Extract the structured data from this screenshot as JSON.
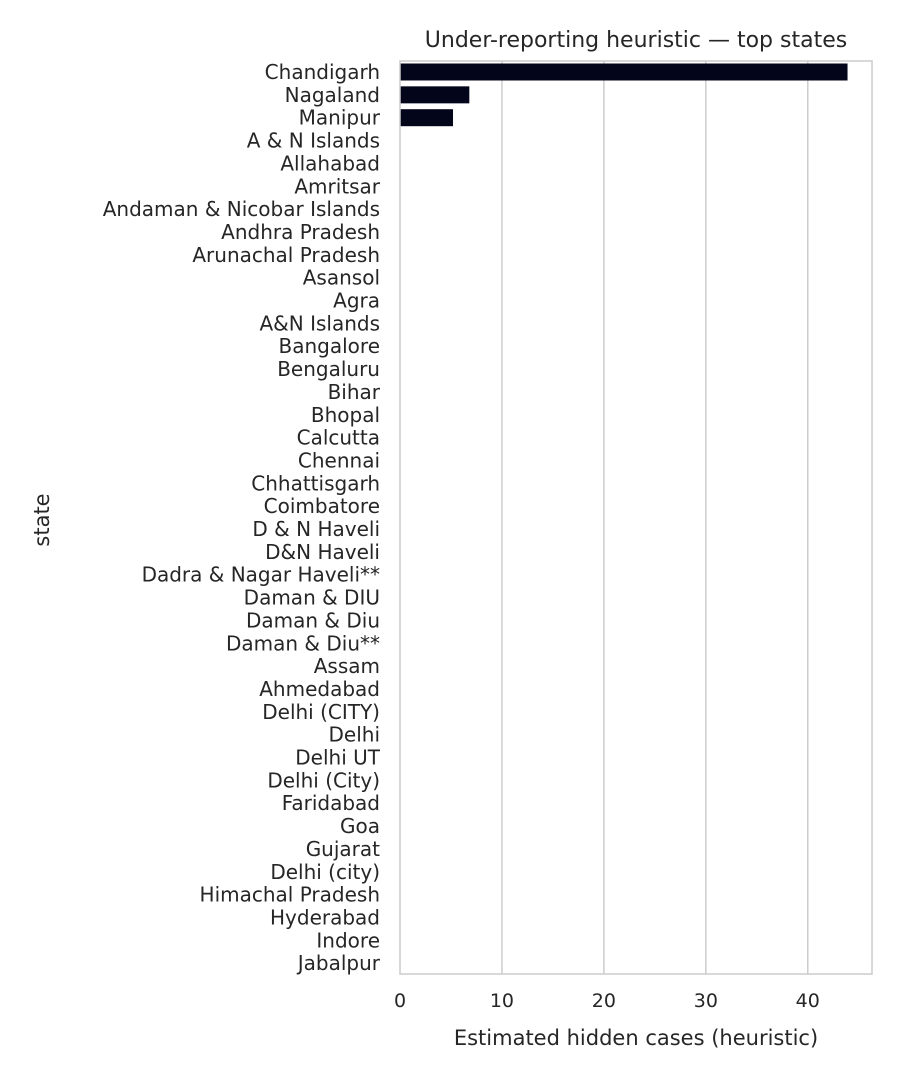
{
  "chart_data": {
    "type": "bar",
    "orientation": "horizontal",
    "title": "Under-reporting heuristic — top states",
    "xlabel": "Estimated hidden cases (heuristic)",
    "ylabel": "state",
    "xlim": [
      0,
      46.3
    ],
    "xticks": [
      0,
      10,
      20,
      30,
      40
    ],
    "grid": "vertical",
    "bar_color": "#03051a",
    "categories": [
      "Chandigarh",
      "Nagaland",
      "Manipur",
      "A & N Islands",
      "Allahabad",
      "Amritsar",
      "Andaman & Nicobar Islands",
      "Andhra Pradesh",
      "Arunachal Pradesh",
      "Asansol",
      "Agra",
      "A&N Islands",
      "Bangalore",
      "Bengaluru",
      "Bihar",
      "Bhopal",
      "Calcutta",
      "Chennai",
      "Chhattisgarh",
      "Coimbatore",
      "D & N Haveli",
      "D&N Haveli",
      "Dadra & Nagar Haveli**",
      "Daman & DIU",
      "Daman & Diu",
      "Daman & Diu**",
      "Assam",
      "Ahmedabad",
      "Delhi (CITY)",
      "Delhi",
      "Delhi UT",
      "Delhi (City)",
      "Faridabad",
      "Goa",
      "Gujarat",
      "Delhi (city)",
      "Himachal Pradesh",
      "Hyderabad",
      "Indore",
      "Jabalpur"
    ],
    "values": [
      43.9,
      6.8,
      5.2,
      0,
      0,
      0,
      0,
      0,
      0,
      0,
      0,
      0,
      0,
      0,
      0,
      0,
      0,
      0,
      0,
      0,
      0,
      0,
      0,
      0,
      0,
      0,
      0,
      0,
      0,
      0,
      0,
      0,
      0,
      0,
      0,
      0,
      0,
      0,
      0,
      0
    ]
  }
}
